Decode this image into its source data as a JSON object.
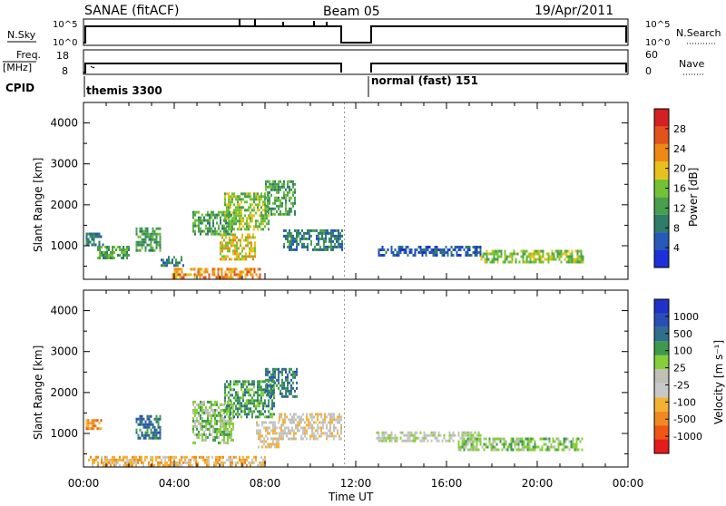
{
  "header": {
    "title": "SANAE (fitACF)",
    "beam": "Beam 05",
    "date": "19/Apr/2011"
  },
  "top_panels": {
    "nsky_label": "N.Sky",
    "nsky_ticks": [
      "10^5",
      "10^0"
    ],
    "nsearch_label": "N.Search",
    "nsearch_ticks": [
      "10^5",
      "10^0"
    ],
    "freq_label": "Freq.",
    "freq_unit": "[MHz]",
    "freq_ticks": [
      "18",
      "8"
    ],
    "nave_label": "Nave",
    "nave_ticks": [
      "60",
      "0"
    ],
    "cpid_label": "CPID",
    "cpid_segments": [
      "themis 3300",
      "normal (fast) 151"
    ]
  },
  "colors": {
    "power_scale": [
      "#1c2fd8",
      "#2659b8",
      "#2f7c68",
      "#49a04c",
      "#73c236",
      "#e6c21b",
      "#ee8a14",
      "#e4521b",
      "#d42020"
    ],
    "velocity_scale": [
      "#e41c1c",
      "#ee5614",
      "#f08a20",
      "#f4b232",
      "#c8c8c8",
      "#c0c0b8",
      "#86cf3a",
      "#3d9a4c",
      "#2f6f8a",
      "#2a4fb4",
      "#2030c8"
    ],
    "ground_scatter": "#bdbdbd"
  },
  "chart_data": [
    {
      "type": "heatmap",
      "panel": "Power",
      "ylabel": "Slant Range [km]",
      "xlabel": "Time UT",
      "x_ticks": [
        "00:00",
        "04:00",
        "08:00",
        "12:00",
        "16:00",
        "20:00",
        "00:00"
      ],
      "y_ticks": [
        1000,
        2000,
        3000,
        4000
      ],
      "ylim": [
        180,
        4500
      ],
      "xlim_hours": [
        0,
        24
      ],
      "colorbar_label": "Power [dB]",
      "colorbar_ticks": [
        "4",
        "8",
        "12",
        "16",
        "20",
        "24",
        "28"
      ],
      "data_gap_hours": [
        11.5,
        12.8
      ],
      "regions": [
        {
          "t0": 0.1,
          "t1": 0.9,
          "r0": 1050,
          "r1": 1320,
          "level": 2
        },
        {
          "t0": 0.6,
          "t1": 2.0,
          "r0": 700,
          "r1": 1000,
          "level": 3
        },
        {
          "t0": 2.3,
          "t1": 3.4,
          "r0": 900,
          "r1": 1450,
          "level": 3
        },
        {
          "t0": 3.4,
          "t1": 4.4,
          "r0": 500,
          "r1": 750,
          "level": 2
        },
        {
          "t0": 3.9,
          "t1": 7.8,
          "r0": 260,
          "r1": 460,
          "level": 6
        },
        {
          "t0": 4.8,
          "t1": 6.5,
          "r0": 1300,
          "r1": 1850,
          "level": 3
        },
        {
          "t0": 6.2,
          "t1": 8.2,
          "r0": 1400,
          "r1": 2300,
          "level": 4
        },
        {
          "t0": 6.0,
          "t1": 7.6,
          "r0": 650,
          "r1": 1300,
          "level": 5
        },
        {
          "t0": 8.0,
          "t1": 9.3,
          "r0": 1800,
          "r1": 2600,
          "level": 3
        },
        {
          "t0": 8.8,
          "t1": 11.4,
          "r0": 900,
          "r1": 1400,
          "level": 2
        },
        {
          "t0": 12.9,
          "t1": 17.5,
          "r0": 750,
          "r1": 1000,
          "level": 1
        },
        {
          "t0": 17.5,
          "t1": 22.0,
          "r0": 600,
          "r1": 900,
          "level": 4
        }
      ]
    },
    {
      "type": "heatmap",
      "panel": "Velocity",
      "ylabel": "Slant Range [km]",
      "xlabel": "Time UT",
      "x_ticks": [
        "00:00",
        "04:00",
        "08:00",
        "12:00",
        "16:00",
        "20:00",
        "00:00"
      ],
      "y_ticks": [
        1000,
        2000,
        3000,
        4000
      ],
      "ylim": [
        180,
        4500
      ],
      "xlim_hours": [
        0,
        24
      ],
      "colorbar_label": "Velocity [m s⁻¹]",
      "colorbar_ticks": [
        "-1000",
        "-500",
        "-100",
        "-25",
        "25",
        "100",
        "500",
        "1000"
      ],
      "data_gap_hours": [
        11.5,
        12.8
      ],
      "regions": [
        {
          "t0": 0.1,
          "t1": 0.8,
          "r0": 1150,
          "r1": 1350,
          "level": 2
        },
        {
          "t0": 2.3,
          "t1": 3.4,
          "r0": 900,
          "r1": 1450,
          "level": 8
        },
        {
          "t0": 0.2,
          "t1": 8.0,
          "r0": 230,
          "r1": 450,
          "level": 3
        },
        {
          "t0": 4.8,
          "t1": 6.6,
          "r0": 800,
          "r1": 1800,
          "level": 6
        },
        {
          "t0": 6.2,
          "t1": 8.4,
          "r0": 1400,
          "r1": 2300,
          "level": 7
        },
        {
          "t0": 7.6,
          "t1": 8.6,
          "r0": 700,
          "r1": 1300,
          "level": 4
        },
        {
          "t0": 8.0,
          "t1": 9.4,
          "r0": 1900,
          "r1": 2600,
          "level": 8
        },
        {
          "t0": 8.6,
          "t1": 11.4,
          "r0": 900,
          "r1": 1500,
          "level": 4
        },
        {
          "t0": 12.9,
          "t1": 17.5,
          "r0": 800,
          "r1": 1050,
          "level": 5
        },
        {
          "t0": 16.5,
          "t1": 22.0,
          "r0": 600,
          "r1": 900,
          "level": 6
        }
      ]
    }
  ]
}
